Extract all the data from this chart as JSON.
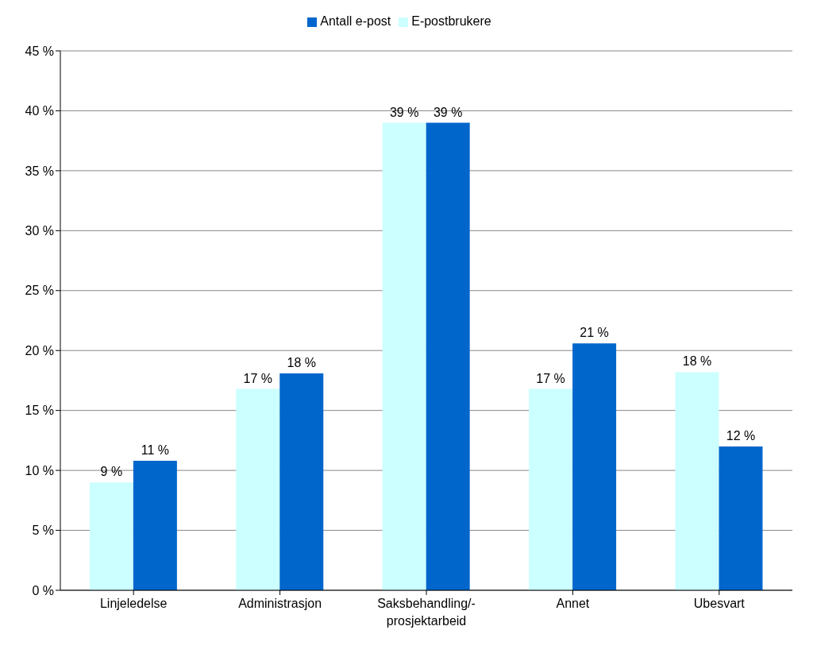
{
  "chart_data": {
    "type": "bar",
    "categories": [
      "Linjeledelse",
      "Administrasjon",
      "Saksbehandling/-\nprosjektarbeid",
      "Annet",
      "Ubesvart"
    ],
    "series": [
      {
        "name": "E-postbrukere",
        "color": "#ccffff",
        "values": [
          9.0,
          16.8,
          39.0,
          16.8,
          18.2
        ],
        "value_labels": [
          "9 %",
          "17 %",
          "39 %",
          "17 %",
          "18 %"
        ]
      },
      {
        "name": "Antall e-post",
        "color": "#0066cc",
        "values": [
          10.8,
          18.1,
          39.0,
          20.6,
          12.0
        ],
        "value_labels": [
          "11 %",
          "18 %",
          "39 %",
          "21 %",
          "12 %"
        ]
      }
    ],
    "ylim": [
      0,
      45
    ],
    "yticks": [
      {
        "value": 0,
        "label": "0 %"
      },
      {
        "value": 5,
        "label": "5 %"
      },
      {
        "value": 10,
        "label": "10 %"
      },
      {
        "value": 15,
        "label": "15 %"
      },
      {
        "value": 20,
        "label": "20 %"
      },
      {
        "value": 25,
        "label": "25 %"
      },
      {
        "value": 30,
        "label": "30 %"
      },
      {
        "value": 35,
        "label": "35 %"
      },
      {
        "value": 40,
        "label": "40 %"
      },
      {
        "value": 45,
        "label": "45 %"
      }
    ],
    "grid": "y",
    "legend": "top"
  }
}
